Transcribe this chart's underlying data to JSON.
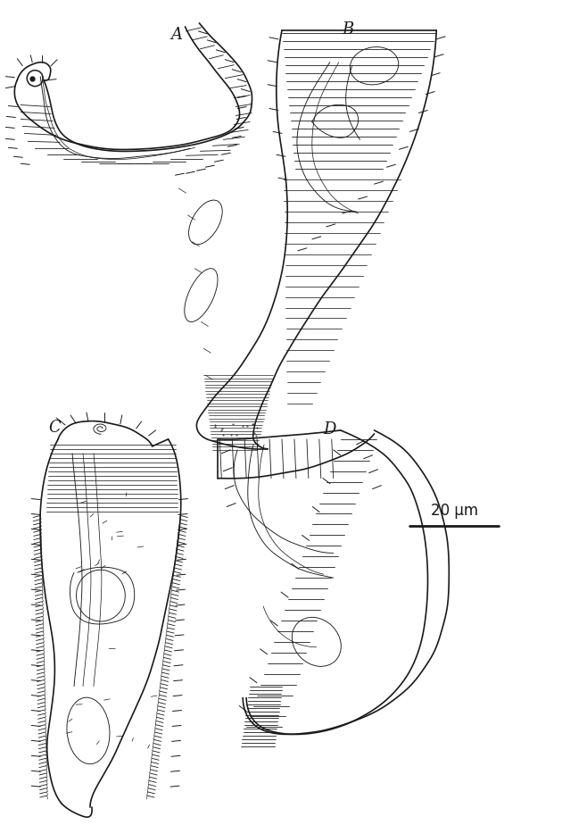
{
  "background_color": "#ffffff",
  "line_color": "#1a1a1a",
  "label_A": "A",
  "label_B": "B",
  "label_C": "C",
  "label_D": "D",
  "scale_label": "20 μm",
  "label_fontsize": 13,
  "scale_fontsize": 12,
  "figsize": [
    6.3,
    9.24
  ],
  "dpi": 100
}
